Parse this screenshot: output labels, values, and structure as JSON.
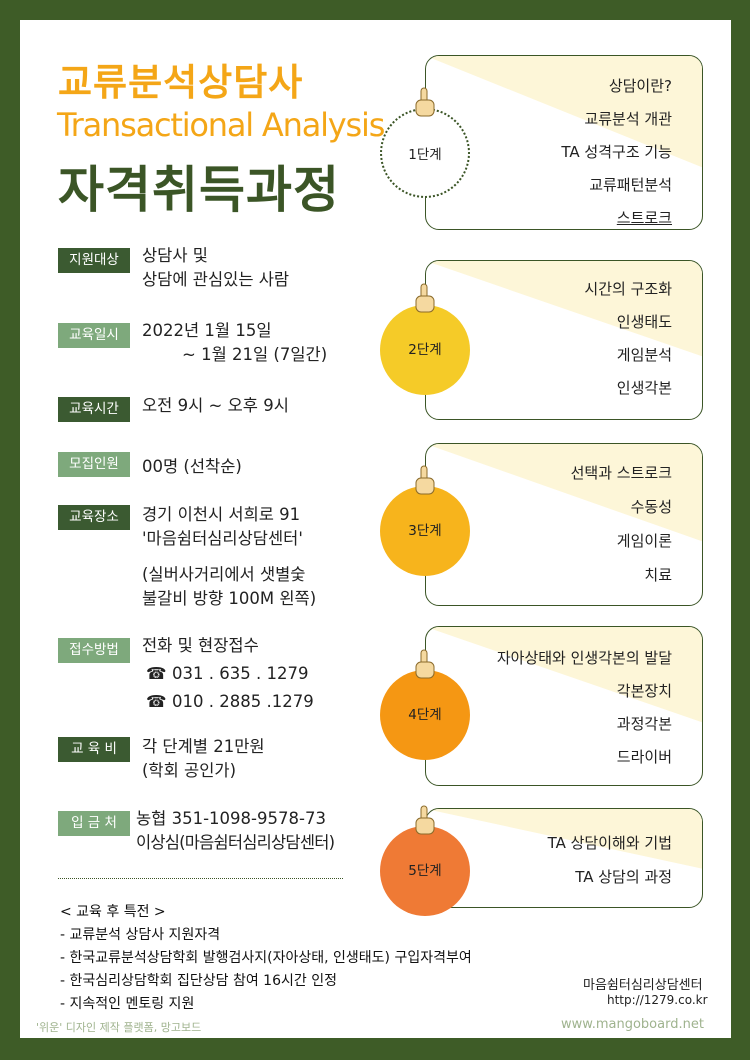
{
  "title": {
    "line1": "교류분석상담사",
    "line2": "Transactional Analysis",
    "line3": "자격취득과정"
  },
  "info": {
    "target": {
      "label": "지원대상",
      "lines": [
        "상담사 및",
        "상담에 관심있는 사람"
      ]
    },
    "schedule": {
      "label": "교육일시",
      "lines": [
        "2022년 1월 15일",
        "~ 1월 21일 (7일간)"
      ]
    },
    "hours": {
      "label": "교육시간",
      "lines": [
        "오전 9시 ~ 오후 9시"
      ]
    },
    "capacity": {
      "label": "모집인원",
      "lines": [
        "00명 (선착순)"
      ]
    },
    "location": {
      "label": "교육장소",
      "lines": [
        "경기 이천시 서희로 91",
        "'마음쉼터심리상담센터'",
        "(실버사거리에서 샛별숯",
        "불갈비 방향 100M 왼쪽)"
      ]
    },
    "apply": {
      "label": "접수방법",
      "lines": [
        "전화 및 현장접수"
      ],
      "phones": [
        "031 . 635 . 1279",
        "010 . 2885 .1279"
      ]
    },
    "fee": {
      "label": "교 육 비",
      "lines": [
        "각 단계별 21만원",
        "(학회 공인가)"
      ]
    },
    "account": {
      "label": "입 금 처",
      "lines": [
        "농협 351-1098-9578-73",
        "이상심(마음쉼터심리상담센터)"
      ]
    }
  },
  "benefits": {
    "title": "< 교육 후 특전 >",
    "items": [
      "- 교류분석 상담사 지원자격",
      "- 한국교류분석상담학회 발행검사지(자아상태, 인생태도) 구입자격부여",
      "- 한국심리상담학회 집단상담 참여 16시간 인정",
      "- 지속적인 멘토링 지원"
    ]
  },
  "steps": [
    {
      "label": "1단계",
      "items": [
        "상담이란?",
        "교류분석 개관",
        "TA 성격구조 기능",
        "교류패턴분석",
        "스트로크"
      ],
      "color": "#ffffff"
    },
    {
      "label": "2단계",
      "items": [
        "시간의 구조화",
        "인생태도",
        "게임분석",
        "인생각본"
      ],
      "color": "#f5cb28"
    },
    {
      "label": "3단계",
      "items": [
        "선택과 스트로크",
        "수동성",
        "게임이론",
        "치료"
      ],
      "color": "#f7b41c"
    },
    {
      "label": "4단계",
      "items": [
        "자아상태와 인생각본의 발달",
        "각본장치",
        "과정각본",
        "드라이버"
      ],
      "color": "#f59713"
    },
    {
      "label": "5단계",
      "items": [
        "TA 상담이해와 기법",
        "TA 상담의 과정"
      ],
      "color": "#ef7a35"
    }
  ],
  "footer": {
    "org": "마음쉼터심리상담센터",
    "url": "http://1279.co.kr",
    "credit": "'위운' 디자인 제작 플랫폼, 망고보드",
    "watermark": "www.mangoboard.net"
  },
  "colors": {
    "frame": "#3e5c27",
    "title_orange": "#f4a617",
    "title_green": "#3b5526",
    "label_dark": "#3b5a31",
    "label_light": "#7ea97c",
    "wedge": "#fdf6d8"
  }
}
